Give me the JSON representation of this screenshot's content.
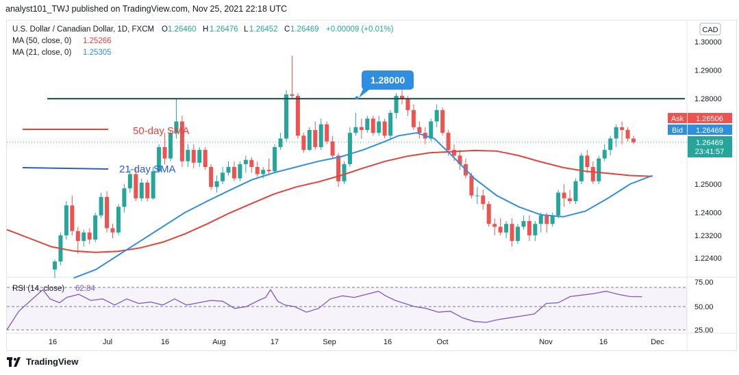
{
  "header": {
    "publisher_line": "analyst101_TWJ published on TradingView.com, Nov 25, 2021 22:18 UTC"
  },
  "legend": {
    "symbol": "U.S. Dollar / Canadian Dollar, 1D, FXCM",
    "ohlc": {
      "o_label": "O",
      "o": "1.26460",
      "h_label": "H",
      "h": "1.26476",
      "l_label": "L",
      "l": "1.26452",
      "c_label": "C",
      "c": "1.26469",
      "change": "+0.00009 (+0.01%)"
    },
    "ma50": {
      "label": "MA (50, close, 0)",
      "value": "1.25266",
      "color": "#e5413a"
    },
    "ma21": {
      "label": "MA (21, close, 0)",
      "value": "1.25305",
      "color": "#2f8ee0"
    }
  },
  "currency_badge": "CAD",
  "price_tags": {
    "ask_label": "Ask",
    "ask": "1.26506",
    "bid_label": "Bid",
    "bid": "1.26469",
    "last": "1.26469",
    "countdown": "23:41:57"
  },
  "annotations": {
    "resistance": "1.28000",
    "sma50": "50-day SMA",
    "sma21": "21-day SMA"
  },
  "rsi": {
    "label": "RSI (14, close)",
    "value": "62.84",
    "ticks": [
      "75.00",
      "50.00",
      "25.00"
    ]
  },
  "footer": {
    "logo_text": "TradingView"
  },
  "colors": {
    "up": "#26a69a",
    "down": "#ef5350",
    "ma50": "#e5413a",
    "ma21": "#2f8ee0",
    "rsi": "#7e57c2",
    "resistance": "#12474a"
  },
  "chart_data": {
    "type": "candlestick",
    "x_tick_labels": [
      "16",
      "Jul",
      "16",
      "Aug",
      "17",
      "Sep",
      "16",
      "Oct",
      "Nov",
      "16",
      "Dec"
    ],
    "y_tick_labels": [
      "1.30000",
      "1.29000",
      "1.28000",
      "1.25000",
      "1.24000",
      "1.23200",
      "1.22400"
    ],
    "resistance_level": 1.28,
    "candles": [
      [
        1.22,
        1.2235,
        1.217,
        1.2228
      ],
      [
        1.2228,
        1.233,
        1.2215,
        1.232
      ],
      [
        1.232,
        1.244,
        1.2305,
        1.2425
      ],
      [
        1.2425,
        1.246,
        1.232,
        1.2335
      ],
      [
        1.2335,
        1.235,
        1.2255,
        1.23
      ],
      [
        1.23,
        1.234,
        1.228,
        1.233
      ],
      [
        1.233,
        1.2345,
        1.229,
        1.2305
      ],
      [
        1.2305,
        1.24,
        1.2295,
        1.239
      ],
      [
        1.239,
        1.247,
        1.238,
        1.2455
      ],
      [
        1.2455,
        1.2475,
        1.233,
        1.2345
      ],
      [
        1.2345,
        1.236,
        1.231,
        1.233
      ],
      [
        1.233,
        1.243,
        1.232,
        1.242
      ],
      [
        1.242,
        1.25,
        1.24,
        1.2485
      ],
      [
        1.2485,
        1.255,
        1.247,
        1.2535
      ],
      [
        1.2535,
        1.256,
        1.244,
        1.245
      ],
      [
        1.245,
        1.252,
        1.244,
        1.2505
      ],
      [
        1.2505,
        1.2515,
        1.244,
        1.245
      ],
      [
        1.245,
        1.256,
        1.2445,
        1.2545
      ],
      [
        1.2545,
        1.264,
        1.254,
        1.263
      ],
      [
        1.263,
        1.268,
        1.257,
        1.259
      ],
      [
        1.259,
        1.269,
        1.258,
        1.268
      ],
      [
        1.268,
        1.28,
        1.266,
        1.272
      ],
      [
        1.272,
        1.274,
        1.256,
        1.258
      ],
      [
        1.258,
        1.264,
        1.256,
        1.262
      ],
      [
        1.262,
        1.264,
        1.2555,
        1.2575
      ],
      [
        1.2575,
        1.263,
        1.256,
        1.262
      ],
      [
        1.262,
        1.263,
        1.255,
        1.256
      ],
      [
        1.256,
        1.257,
        1.248,
        1.249
      ],
      [
        1.249,
        1.253,
        1.247,
        1.251
      ],
      [
        1.251,
        1.256,
        1.25,
        1.254
      ],
      [
        1.254,
        1.258,
        1.253,
        1.256
      ],
      [
        1.256,
        1.258,
        1.251,
        1.252
      ],
      [
        1.252,
        1.258,
        1.251,
        1.257
      ],
      [
        1.257,
        1.26,
        1.254,
        1.2585
      ],
      [
        1.2585,
        1.2595,
        1.254,
        1.256
      ],
      [
        1.256,
        1.258,
        1.2525,
        1.2535
      ],
      [
        1.2535,
        1.256,
        1.252,
        1.255
      ],
      [
        1.255,
        1.259,
        1.253,
        1.2545
      ],
      [
        1.2545,
        1.264,
        1.254,
        1.263
      ],
      [
        1.263,
        1.268,
        1.262,
        1.266
      ],
      [
        1.266,
        1.283,
        1.265,
        1.2815
      ],
      [
        1.2815,
        1.295,
        1.28,
        1.281
      ],
      [
        1.281,
        1.282,
        1.266,
        1.267
      ],
      [
        1.267,
        1.268,
        1.261,
        1.262
      ],
      [
        1.262,
        1.27,
        1.2615,
        1.269
      ],
      [
        1.269,
        1.272,
        1.262,
        1.263
      ],
      [
        1.263,
        1.273,
        1.262,
        1.271
      ],
      [
        1.271,
        1.272,
        1.264,
        1.265
      ],
      [
        1.265,
        1.267,
        1.259,
        1.26
      ],
      [
        1.26,
        1.261,
        1.249,
        1.251
      ],
      [
        1.251,
        1.258,
        1.25,
        1.257
      ],
      [
        1.257,
        1.27,
        1.256,
        1.268
      ],
      [
        1.268,
        1.275,
        1.267,
        1.27
      ],
      [
        1.27,
        1.273,
        1.266,
        1.269
      ],
      [
        1.269,
        1.274,
        1.268,
        1.273
      ],
      [
        1.273,
        1.274,
        1.267,
        1.268
      ],
      [
        1.268,
        1.274,
        1.267,
        1.272
      ],
      [
        1.272,
        1.273,
        1.266,
        1.267
      ],
      [
        1.267,
        1.276,
        1.266,
        1.275
      ],
      [
        1.275,
        1.282,
        1.273,
        1.281
      ],
      [
        1.281,
        1.289,
        1.278,
        1.28
      ],
      [
        1.28,
        1.281,
        1.274,
        1.276
      ],
      [
        1.276,
        1.278,
        1.269,
        1.27
      ],
      [
        1.27,
        1.272,
        1.266,
        1.268
      ],
      [
        1.268,
        1.27,
        1.264,
        1.266
      ],
      [
        1.266,
        1.273,
        1.265,
        1.272
      ],
      [
        1.272,
        1.278,
        1.27,
        1.276
      ],
      [
        1.276,
        1.277,
        1.267,
        1.268
      ],
      [
        1.268,
        1.269,
        1.26,
        1.262
      ],
      [
        1.262,
        1.264,
        1.258,
        1.26
      ],
      [
        1.26,
        1.262,
        1.255,
        1.257
      ],
      [
        1.257,
        1.259,
        1.252,
        1.253
      ],
      [
        1.253,
        1.254,
        1.245,
        1.246
      ],
      [
        1.246,
        1.249,
        1.243,
        1.246
      ],
      [
        1.246,
        1.248,
        1.241,
        1.243
      ],
      [
        1.243,
        1.244,
        1.235,
        1.236
      ],
      [
        1.236,
        1.238,
        1.232,
        1.235
      ],
      [
        1.235,
        1.238,
        1.232,
        1.233
      ],
      [
        1.233,
        1.237,
        1.231,
        1.236
      ],
      [
        1.236,
        1.238,
        1.228,
        1.23
      ],
      [
        1.23,
        1.236,
        1.229,
        1.235
      ],
      [
        1.235,
        1.239,
        1.234,
        1.237
      ],
      [
        1.237,
        1.239,
        1.23,
        1.232
      ],
      [
        1.232,
        1.237,
        1.23,
        1.236
      ],
      [
        1.236,
        1.24,
        1.233,
        1.239
      ],
      [
        1.239,
        1.24,
        1.233,
        1.236
      ],
      [
        1.236,
        1.24,
        1.235,
        1.239
      ],
      [
        1.239,
        1.248,
        1.238,
        1.247
      ],
      [
        1.247,
        1.25,
        1.242,
        1.245
      ],
      [
        1.245,
        1.248,
        1.243,
        1.244
      ],
      [
        1.244,
        1.252,
        1.243,
        1.251
      ],
      [
        1.251,
        1.261,
        1.25,
        1.26
      ],
      [
        1.26,
        1.262,
        1.254,
        1.256
      ],
      [
        1.256,
        1.258,
        1.25,
        1.251
      ],
      [
        1.251,
        1.26,
        1.25,
        1.259
      ],
      [
        1.259,
        1.264,
        1.258,
        1.262
      ],
      [
        1.262,
        1.267,
        1.26,
        1.266
      ],
      [
        1.266,
        1.271,
        1.263,
        1.27
      ],
      [
        1.27,
        1.272,
        1.264,
        1.269
      ],
      [
        1.269,
        1.27,
        1.265,
        1.266
      ],
      [
        1.266,
        1.267,
        1.264,
        1.2647
      ]
    ],
    "ma50": [
      [
        0,
        1.234
      ],
      [
        5,
        1.231
      ],
      [
        10,
        1.228
      ],
      [
        15,
        1.2265
      ],
      [
        20,
        1.226
      ],
      [
        25,
        1.2264
      ],
      [
        30,
        1.2276
      ],
      [
        35,
        1.2296
      ],
      [
        40,
        1.2325
      ],
      [
        45,
        1.236
      ],
      [
        50,
        1.2398
      ],
      [
        55,
        1.2432
      ],
      [
        60,
        1.2465
      ],
      [
        65,
        1.249
      ],
      [
        70,
        1.2508
      ],
      [
        75,
        1.253
      ],
      [
        80,
        1.2556
      ],
      [
        85,
        1.258
      ],
      [
        90,
        1.2598
      ],
      [
        95,
        1.261
      ],
      [
        100,
        1.2614
      ],
      [
        105,
        1.2618
      ],
      [
        110,
        1.2616
      ],
      [
        115,
        1.26
      ],
      [
        120,
        1.2578
      ],
      [
        125,
        1.2558
      ],
      [
        130,
        1.2545
      ],
      [
        135,
        1.2538
      ],
      [
        140,
        1.253
      ],
      [
        145,
        1.2527
      ]
    ],
    "ma21": [
      [
        15,
        1.217
      ],
      [
        20,
        1.22
      ],
      [
        25,
        1.225
      ],
      [
        30,
        1.23
      ],
      [
        35,
        1.235
      ],
      [
        40,
        1.24
      ],
      [
        45,
        1.244
      ],
      [
        50,
        1.2478
      ],
      [
        55,
        1.2515
      ],
      [
        60,
        1.254
      ],
      [
        65,
        1.256
      ],
      [
        70,
        1.258
      ],
      [
        75,
        1.2596
      ],
      [
        80,
        1.262
      ],
      [
        85,
        1.265
      ],
      [
        88,
        1.267
      ],
      [
        92,
        1.268
      ],
      [
        96,
        1.266
      ],
      [
        100,
        1.26
      ],
      [
        105,
        1.252
      ],
      [
        110,
        1.246
      ],
      [
        115,
        1.242
      ],
      [
        120,
        1.2392
      ],
      [
        125,
        1.2385
      ],
      [
        130,
        1.2405
      ],
      [
        135,
        1.245
      ],
      [
        140,
        1.25
      ],
      [
        145,
        1.253
      ]
    ],
    "rsi": [
      [
        0,
        25
      ],
      [
        5,
        45
      ],
      [
        10,
        58
      ],
      [
        15,
        72
      ],
      [
        18,
        60
      ],
      [
        22,
        55
      ],
      [
        25,
        62
      ],
      [
        30,
        66
      ],
      [
        35,
        58
      ],
      [
        40,
        60
      ],
      [
        45,
        52
      ],
      [
        50,
        60
      ],
      [
        55,
        54
      ],
      [
        60,
        56
      ],
      [
        65,
        52
      ],
      [
        70,
        60
      ],
      [
        75,
        52
      ],
      [
        80,
        55
      ],
      [
        85,
        58
      ],
      [
        90,
        57
      ],
      [
        95,
        48
      ],
      [
        100,
        50
      ],
      [
        105,
        58
      ],
      [
        108,
        62
      ],
      [
        110,
        72
      ],
      [
        113,
        57
      ],
      [
        116,
        52
      ],
      [
        120,
        50
      ],
      [
        125,
        44
      ],
      [
        130,
        48
      ],
      [
        135,
        60
      ],
      [
        140,
        64
      ],
      [
        145,
        62
      ],
      [
        150,
        66
      ],
      [
        155,
        70
      ],
      [
        158,
        64
      ],
      [
        162,
        58
      ],
      [
        165,
        55
      ],
      [
        170,
        50
      ],
      [
        175,
        48
      ],
      [
        180,
        44
      ],
      [
        185,
        45
      ],
      [
        190,
        38
      ],
      [
        195,
        34
      ],
      [
        200,
        33
      ],
      [
        205,
        36
      ],
      [
        210,
        38
      ],
      [
        215,
        40
      ],
      [
        220,
        42
      ],
      [
        225,
        54
      ],
      [
        230,
        55
      ],
      [
        235,
        63
      ],
      [
        240,
        65
      ],
      [
        245,
        67
      ],
      [
        250,
        70
      ],
      [
        255,
        66
      ],
      [
        260,
        63
      ],
      [
        265,
        62.84
      ]
    ]
  }
}
